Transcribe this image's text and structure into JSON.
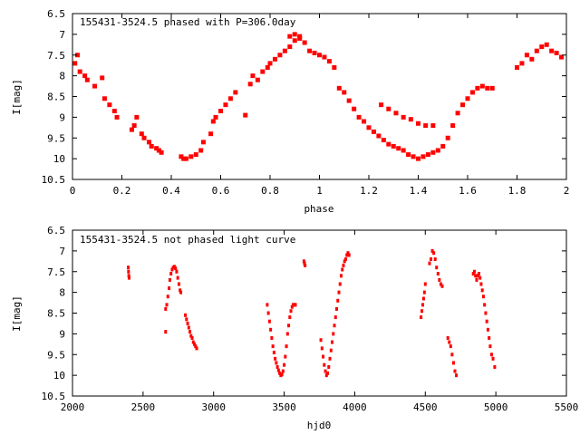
{
  "colors": {
    "points": "#ff0000",
    "axes": "#000000",
    "background": "#ffffff"
  },
  "chart_data": [
    {
      "type": "scatter",
      "title": "155431-3524.5 phased with P=306.0day",
      "xlabel": "phase",
      "ylabel": "I[mag]",
      "xlim": [
        0,
        2
      ],
      "ylim": [
        10.5,
        6.5
      ],
      "y_inverted": true,
      "grid": false,
      "x_ticks": [
        "0",
        "0.2",
        "0.4",
        "0.6",
        "0.8",
        "1",
        "1.2",
        "1.4",
        "1.6",
        "1.8",
        "2"
      ],
      "y_ticks": [
        "6.5",
        "7",
        "7.5",
        "8",
        "8.5",
        "9",
        "9.5",
        "10",
        "10.5"
      ],
      "marker": "plus",
      "series": [
        {
          "x": [
            0.01,
            0.02,
            0.03,
            0.05,
            0.06,
            0.09,
            0.12,
            0.13,
            0.15,
            0.17,
            0.18,
            0.24,
            0.25,
            0.26,
            0.28,
            0.29,
            0.31,
            0.32,
            0.34,
            0.35,
            0.36,
            0.44,
            0.45,
            0.46,
            0.48,
            0.5,
            0.52,
            0.53,
            0.56,
            0.57,
            0.58,
            0.6,
            0.62,
            0.64,
            0.66,
            0.7,
            0.72,
            0.73,
            0.75,
            0.77,
            0.79,
            0.8,
            0.82,
            0.84,
            0.86,
            0.88,
            0.9,
            0.92,
            0.94,
            0.96,
            0.98,
            1.0,
            1.02,
            1.04,
            1.06,
            1.08,
            1.1,
            1.12,
            1.14,
            1.16,
            1.18,
            1.2,
            1.22,
            1.24,
            1.26,
            1.28,
            1.3,
            1.32,
            1.34,
            1.36,
            1.38,
            1.4,
            1.42,
            1.44,
            1.46,
            1.48,
            1.5,
            1.52,
            1.54,
            1.56,
            1.58,
            1.6,
            1.62,
            1.64,
            1.66,
            1.68,
            1.7,
            1.8,
            1.82,
            1.84,
            1.86,
            1.88,
            1.9,
            1.92,
            1.94,
            1.96,
            1.98,
            1.25,
            1.28,
            1.31,
            1.34,
            1.37,
            1.4,
            1.43,
            1.46,
            0.88,
            0.9,
            0.92
          ],
          "y": [
            7.7,
            7.5,
            7.9,
            8.0,
            8.1,
            8.25,
            8.05,
            8.55,
            8.7,
            8.85,
            9.0,
            9.3,
            9.2,
            9.0,
            9.4,
            9.5,
            9.6,
            9.7,
            9.75,
            9.8,
            9.85,
            9.95,
            10.0,
            10.0,
            9.95,
            9.9,
            9.8,
            9.6,
            9.4,
            9.1,
            9.0,
            8.85,
            8.7,
            8.55,
            8.4,
            8.95,
            8.2,
            8.0,
            8.1,
            7.9,
            7.8,
            7.7,
            7.6,
            7.5,
            7.4,
            7.3,
            7.15,
            7.1,
            7.2,
            7.4,
            7.45,
            7.5,
            7.55,
            7.65,
            7.8,
            8.3,
            8.4,
            8.6,
            8.8,
            9.0,
            9.1,
            9.25,
            9.35,
            9.45,
            9.55,
            9.65,
            9.7,
            9.75,
            9.8,
            9.9,
            9.95,
            10.0,
            9.95,
            9.9,
            9.85,
            9.8,
            9.7,
            9.5,
            9.2,
            8.9,
            8.7,
            8.55,
            8.4,
            8.3,
            8.25,
            8.3,
            8.3,
            7.8,
            7.7,
            7.5,
            7.6,
            7.4,
            7.3,
            7.25,
            7.4,
            7.45,
            7.55,
            8.7,
            8.8,
            8.9,
            9.0,
            9.05,
            9.15,
            9.2,
            9.2,
            7.05,
            7.0,
            7.05
          ]
        }
      ]
    },
    {
      "type": "scatter",
      "title": "155431-3524.5 not phased light curve",
      "xlabel": "hjd0",
      "ylabel": "I[mag]",
      "xlim": [
        2000,
        5500
      ],
      "ylim": [
        10.5,
        6.5
      ],
      "y_inverted": true,
      "grid": false,
      "x_ticks": [
        "2000",
        "2500",
        "3000",
        "3500",
        "4000",
        "4500",
        "5000",
        "5500"
      ],
      "y_ticks": [
        "6.5",
        "7",
        "7.5",
        "8",
        "8.5",
        "9",
        "9.5",
        "10",
        "10.5"
      ],
      "marker": "dot",
      "series": [
        {
          "x": [
            2395,
            2397,
            2399,
            2401,
            2660,
            2668,
            2676,
            2684,
            2690,
            2698,
            2706,
            2714,
            2722,
            2730,
            2738,
            2746,
            2754,
            2762,
            2768,
            2660,
            2800,
            2808,
            2816,
            2824,
            2832,
            2840,
            2848,
            2856,
            2864,
            2872,
            2880,
            3380,
            3388,
            3396,
            3404,
            3412,
            3420,
            3428,
            3436,
            3444,
            3452,
            3460,
            3468,
            3476,
            3484,
            3492,
            3500,
            3508,
            3516,
            3524,
            3532,
            3540,
            3548,
            3556,
            3564,
            3572,
            3580,
            3640,
            3644,
            3648,
            3760,
            3768,
            3776,
            3784,
            3792,
            3800,
            3808,
            3816,
            3824,
            3832,
            3840,
            3848,
            3856,
            3864,
            3872,
            3880,
            3888,
            3896,
            3904,
            3912,
            3920,
            3928,
            3936,
            3944,
            3952,
            3960,
            4470,
            4476,
            4482,
            4488,
            4494,
            4500,
            4530,
            4540,
            4550,
            4560,
            4570,
            4580,
            4590,
            4600,
            4610,
            4620,
            4660,
            4670,
            4680,
            4690,
            4700,
            4710,
            4720,
            4840,
            4848,
            4856,
            4864,
            4872,
            4880,
            4888,
            4896,
            4904,
            4912,
            4920,
            4928,
            4936,
            4944,
            4952,
            4960,
            4970,
            4980,
            4992
          ],
          "y": [
            7.4,
            7.5,
            7.6,
            7.65,
            8.4,
            8.3,
            8.1,
            7.9,
            7.7,
            7.55,
            7.45,
            7.4,
            7.38,
            7.42,
            7.5,
            7.65,
            7.8,
            7.95,
            8.0,
            8.95,
            8.55,
            8.65,
            8.75,
            8.85,
            8.95,
            9.05,
            9.1,
            9.2,
            9.25,
            9.3,
            9.35,
            8.3,
            8.5,
            8.7,
            8.9,
            9.1,
            9.3,
            9.45,
            9.6,
            9.7,
            9.8,
            9.88,
            9.95,
            10.0,
            9.98,
            9.9,
            9.75,
            9.55,
            9.3,
            9.0,
            8.8,
            8.6,
            8.45,
            8.35,
            8.3,
            8.3,
            8.3,
            7.25,
            7.3,
            7.35,
            9.15,
            9.35,
            9.55,
            9.75,
            9.9,
            10.0,
            9.95,
            9.8,
            9.6,
            9.4,
            9.2,
            9.0,
            8.8,
            8.6,
            8.4,
            8.2,
            8.0,
            7.8,
            7.6,
            7.45,
            7.35,
            7.25,
            7.2,
            7.1,
            7.05,
            7.1,
            8.6,
            8.45,
            8.3,
            8.15,
            8.0,
            7.8,
            7.3,
            7.2,
            7.0,
            7.05,
            7.2,
            7.4,
            7.55,
            7.7,
            7.8,
            7.85,
            9.1,
            9.2,
            9.3,
            9.5,
            9.7,
            9.9,
            10.0,
            7.55,
            7.5,
            7.6,
            7.7,
            7.6,
            7.55,
            7.65,
            7.8,
            7.95,
            8.1,
            8.3,
            8.5,
            8.7,
            8.9,
            9.1,
            9.3,
            9.5,
            9.6,
            9.8
          ]
        }
      ]
    }
  ]
}
